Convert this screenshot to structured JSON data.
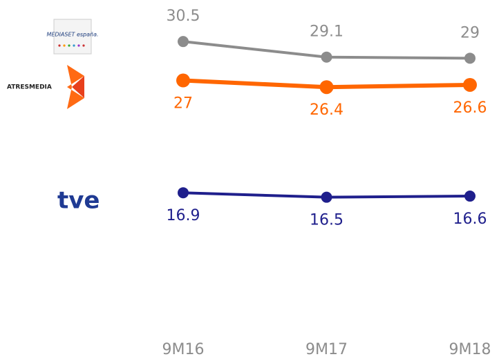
{
  "chart_data": {
    "type": "line",
    "categories": [
      "9M16",
      "9M17",
      "9M18"
    ],
    "series": [
      {
        "name": "MEDIASET españa.",
        "color": "#8c8c8c",
        "values": [
          30.5,
          29.1,
          29.0
        ]
      },
      {
        "name": "ATRESMEDIA",
        "color": "#ff6600",
        "values": [
          27.0,
          26.4,
          26.6
        ]
      },
      {
        "name": "tve",
        "color": "#1f1f8c",
        "values": [
          16.9,
          16.5,
          16.6
        ]
      }
    ],
    "ylim": [
      4,
      32
    ]
  }
}
